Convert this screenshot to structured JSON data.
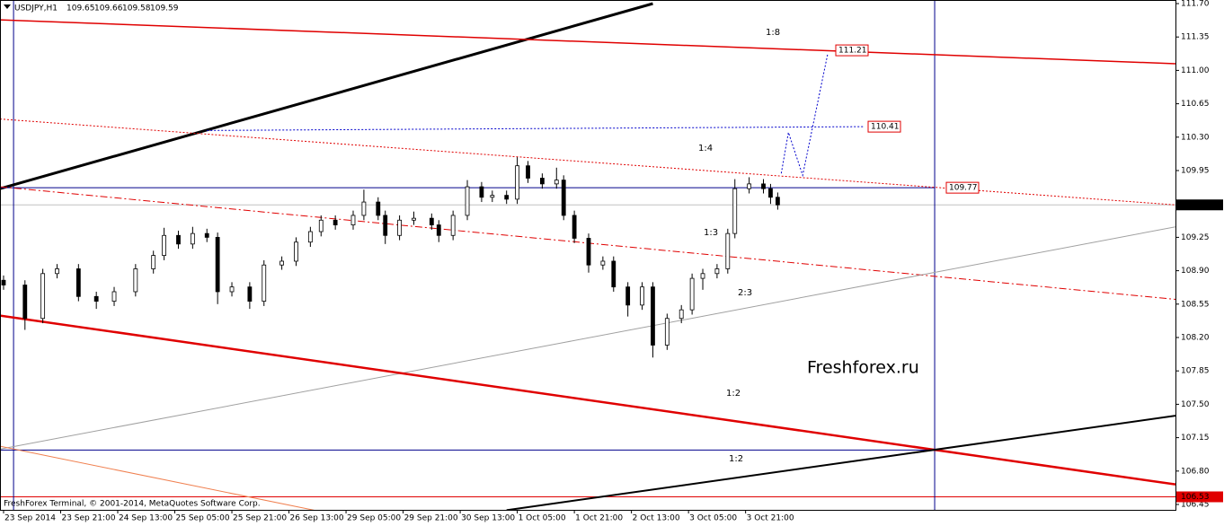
{
  "header": {
    "symbol": "USDJPY,H1",
    "ohlc": [
      109.65,
      109.66,
      109.58,
      109.59
    ]
  },
  "footer": "FreshForex Terminal, © 2001-2014, MetaQuotes Software Corp.",
  "chart_data": {
    "type": "candlestick",
    "xlim": [
      -1,
      328.5
    ],
    "ylim": [
      106.45,
      111.7
    ],
    "yticks": [
      {
        "value": 111.7,
        "label": "111.70"
      },
      111.35,
      {
        "value": 111.0,
        "label": "111.00"
      },
      110.65,
      {
        "value": 110.3,
        "label": "110.30"
      },
      109.95,
      109.25,
      {
        "value": 108.9,
        "label": "108.90"
      },
      108.55,
      {
        "value": 108.2,
        "label": "108.20"
      },
      107.85,
      {
        "value": 107.5,
        "label": "107.50"
      },
      107.15,
      {
        "value": 106.8,
        "label": "106.80"
      },
      106.45
    ],
    "xticks": [
      {
        "value": 0,
        "label": "23 Sep 2014"
      },
      {
        "value": 16,
        "label": "23 Sep 21:00"
      },
      {
        "value": 32,
        "label": "24 Sep 13:00"
      },
      {
        "value": 48,
        "label": "25 Sep 05:00"
      },
      {
        "value": 64,
        "label": "25 Sep 21:00"
      },
      {
        "value": 80,
        "label": "26 Sep 13:00"
      },
      {
        "value": 96,
        "label": "29 Sep 05:00"
      },
      {
        "value": 112,
        "label": "29 Sep 21:00"
      },
      {
        "value": 128,
        "label": "30 Sep 13:00"
      },
      {
        "value": 144,
        "label": "1 Oct 05:00"
      },
      {
        "value": 160,
        "label": "1 Oct 21:00"
      },
      {
        "value": 176,
        "label": "2 Oct 13:00"
      },
      {
        "value": 192,
        "label": "3 Oct 05:00"
      },
      {
        "value": 208,
        "label": "3 Oct 21:00"
      }
    ],
    "x": [
      0,
      6,
      11,
      15,
      21,
      26,
      31,
      37,
      42,
      45,
      49,
      53,
      57,
      60,
      64,
      69,
      73,
      78,
      82,
      86,
      89,
      93,
      98,
      101,
      105,
      107,
      111,
      115,
      120,
      122,
      126,
      130,
      134,
      137,
      141,
      144,
      147,
      151,
      155,
      157,
      160,
      164,
      168,
      171,
      175,
      179,
      182,
      186,
      190,
      193,
      196,
      200,
      203,
      205,
      209,
      213,
      215,
      217
    ],
    "open": [
      108.8,
      108.75,
      108.4,
      108.87,
      108.92,
      108.63,
      108.58,
      108.68,
      108.92,
      109.06,
      109.27,
      109.18,
      109.29,
      109.25,
      108.68,
      108.73,
      108.58,
      108.96,
      109.0,
      109.2,
      109.31,
      109.43,
      109.38,
      109.48,
      109.62,
      109.48,
      109.27,
      109.43,
      109.45,
      109.38,
      109.27,
      109.48,
      109.78,
      109.67,
      109.69,
      109.65,
      110.0,
      109.87,
      109.81,
      109.85,
      109.48,
      109.24,
      108.96,
      109.0,
      108.73,
      108.54,
      108.73,
      108.12,
      108.4,
      108.49,
      108.82,
      108.87,
      108.92,
      109.29,
      109.76,
      109.81,
      109.76,
      109.67
    ],
    "high": [
      108.85,
      108.8,
      108.92,
      108.97,
      108.97,
      108.68,
      108.73,
      108.97,
      109.11,
      109.35,
      109.32,
      109.36,
      109.34,
      109.3,
      108.78,
      108.78,
      109.01,
      109.05,
      109.25,
      109.36,
      109.48,
      109.48,
      109.53,
      109.75,
      109.67,
      109.53,
      109.48,
      109.52,
      109.5,
      109.43,
      109.53,
      109.85,
      109.83,
      109.74,
      109.74,
      110.09,
      110.05,
      109.92,
      109.98,
      109.9,
      109.53,
      109.29,
      109.05,
      109.05,
      108.78,
      108.78,
      108.78,
      108.45,
      108.54,
      108.87,
      108.92,
      108.97,
      109.34,
      109.86,
      109.88,
      109.86,
      109.81,
      109.72
    ],
    "low": [
      108.7,
      108.28,
      108.35,
      108.82,
      108.58,
      108.5,
      108.53,
      108.63,
      108.87,
      109.01,
      109.13,
      109.13,
      109.2,
      108.55,
      108.63,
      108.5,
      108.53,
      108.91,
      108.95,
      109.15,
      109.26,
      109.33,
      109.33,
      109.43,
      109.43,
      109.18,
      109.22,
      109.38,
      109.33,
      109.2,
      109.22,
      109.43,
      109.62,
      109.62,
      109.6,
      109.6,
      109.82,
      109.76,
      109.76,
      109.43,
      109.19,
      108.88,
      108.91,
      108.68,
      108.42,
      108.49,
      107.99,
      108.07,
      108.35,
      108.44,
      108.7,
      108.82,
      108.87,
      109.24,
      109.71,
      109.71,
      109.6,
      109.54
    ],
    "close": [
      108.75,
      108.4,
      108.87,
      108.92,
      108.63,
      108.58,
      108.68,
      108.92,
      109.06,
      109.27,
      109.18,
      109.29,
      109.25,
      108.68,
      108.73,
      108.58,
      108.96,
      109.0,
      109.2,
      109.31,
      109.43,
      109.38,
      109.48,
      109.62,
      109.48,
      109.27,
      109.43,
      109.45,
      109.38,
      109.27,
      109.48,
      109.78,
      109.67,
      109.69,
      109.65,
      110.0,
      109.87,
      109.81,
      109.85,
      109.48,
      109.24,
      108.96,
      109.0,
      108.73,
      108.54,
      108.73,
      108.12,
      108.4,
      108.49,
      108.82,
      108.87,
      108.92,
      109.29,
      109.76,
      109.81,
      109.76,
      109.67,
      109.59
    ],
    "lines": [
      {
        "x": [
          -1,
          182
        ],
        "y": [
          109.76,
          111.7
        ],
        "color": "#000000",
        "width": 3
      },
      {
        "x": [
          -1,
          328.5
        ],
        "y": [
          111.53,
          111.07
        ],
        "color": "#e00000",
        "width": 1.5
      },
      {
        "x": [
          -1,
          261
        ],
        "y": [
          109.77,
          109.77
        ],
        "color": "#00008b",
        "width": 1
      },
      {
        "x": [
          -1,
          328.5
        ],
        "y": [
          110.49,
          109.59
        ],
        "color": "#e00000",
        "width": 1,
        "dash": "2,2"
      },
      {
        "x": [
          -1,
          328.5
        ],
        "y": [
          109.78,
          108.6
        ],
        "color": "#e00000",
        "width": 1,
        "dash": "8,3,2,3"
      },
      {
        "x": [
          -1,
          328.5
        ],
        "y": [
          107.03,
          109.36
        ],
        "color": "#a0a0a0",
        "width": 1
      },
      {
        "x": [
          -1,
          328.5
        ],
        "y": [
          108.43,
          106.66
        ],
        "color": "#e00000",
        "width": 2.5
      },
      {
        "x": [
          -1,
          261
        ],
        "y": [
          107.02,
          107.02
        ],
        "color": "#00008b",
        "width": 1
      },
      {
        "x": [
          141,
          328.5
        ],
        "y": [
          106.39,
          107.38
        ],
        "color": "#000000",
        "width": 2
      },
      {
        "x": [
          -1,
          87
        ],
        "y": [
          107.06,
          106.39
        ],
        "color": "#f08050",
        "width": 1
      },
      {
        "x": [
          57,
          241
        ],
        "y": [
          110.37,
          110.41
        ],
        "color": "#0000cc",
        "width": 1,
        "dash": "2,2"
      },
      {
        "x": [
          218,
          220,
          224,
          231
        ],
        "y": [
          109.92,
          110.35,
          109.9,
          111.17
        ],
        "color": "#0000cc",
        "width": 1,
        "dash": "2,2"
      }
    ],
    "vlines": [
      {
        "x": 2.8,
        "color": "#00008b"
      },
      {
        "x": 261,
        "color": "#00008b"
      }
    ],
    "hlines": [
      {
        "value": 109.59,
        "color": "#c0c0c0",
        "label_bg": "#000000"
      },
      {
        "value": 106.53,
        "color": "#e00000",
        "label_bg": "#e00000"
      }
    ],
    "price_marks": [
      {
        "value": 111.21,
        "color": "#e00000"
      },
      {
        "value": 110.41,
        "color": "#e00000"
      },
      {
        "value": 109.77,
        "color": "#e00000"
      }
    ],
    "annotations": [
      {
        "text": "1:8",
        "color": "#e00000"
      },
      {
        "text": "1:4",
        "color": "#e00000"
      },
      {
        "text": "1:3",
        "color": "#e00000"
      },
      {
        "text": "2:3",
        "color": "#000000"
      },
      {
        "text": "1:2",
        "color": "#e00000"
      },
      {
        "text": "1:2",
        "color": "#000000"
      },
      {
        "text": "Freshforex.ru",
        "color": "#22b022"
      }
    ]
  }
}
